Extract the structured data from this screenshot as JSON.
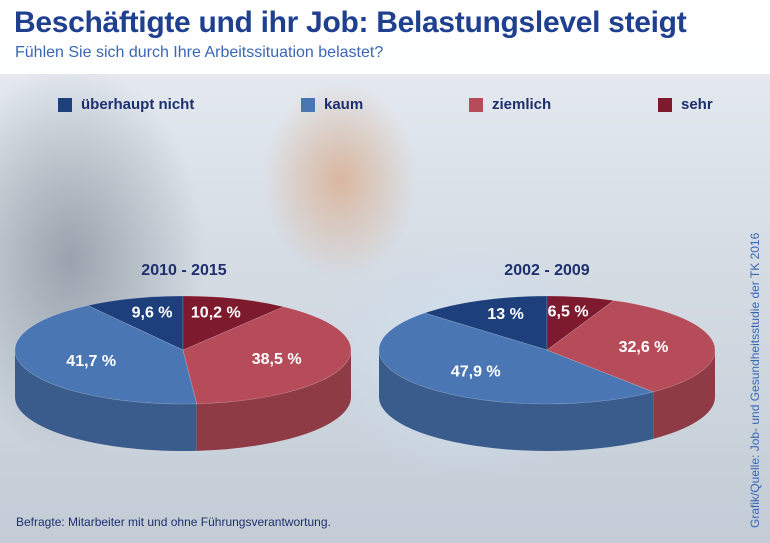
{
  "header": {
    "title": "Beschäftigte und ihr Job: Belastungslevel steigt",
    "subtitle": "Fühlen Sie sich durch Ihre Arbeitssituation belastet?"
  },
  "legend": [
    {
      "label": "überhaupt nicht",
      "color": "#1d3f7c"
    },
    {
      "label": "kaum",
      "color": "#4a76b3"
    },
    {
      "label": "ziemlich",
      "color": "#b64c5a"
    },
    {
      "label": "sehr",
      "color": "#7e1a2e"
    }
  ],
  "chart_data": [
    {
      "type": "pie",
      "title": "2010 - 2015",
      "labels": [
        "überhaupt nicht",
        "kaum",
        "ziemlich",
        "sehr"
      ],
      "values": [
        9.6,
        41.7,
        38.5,
        10.2
      ],
      "value_labels": [
        "9,6 %",
        "41,7 %",
        "38,5 %",
        "10,2 %"
      ],
      "colors": [
        "#1d3f7c",
        "#4a76b3",
        "#b64c5a",
        "#7e1a2e"
      ],
      "style": "3d"
    },
    {
      "type": "pie",
      "title": "2002 - 2009",
      "labels": [
        "überhaupt nicht",
        "kaum",
        "ziemlich",
        "sehr"
      ],
      "values": [
        13,
        47.9,
        32.6,
        6.5
      ],
      "value_labels": [
        "13 %",
        "47,9 %",
        "32,6 %",
        "6,5 %"
      ],
      "colors": [
        "#1d3f7c",
        "#4a76b3",
        "#b64c5a",
        "#7e1a2e"
      ],
      "style": "3d"
    }
  ],
  "footnote": "Befragte: Mitarbeiter mit und ohne Führungsverantwortung.",
  "source": "Grafik/Quelle: Job- und Gesundheitsstudie der TK 2016"
}
